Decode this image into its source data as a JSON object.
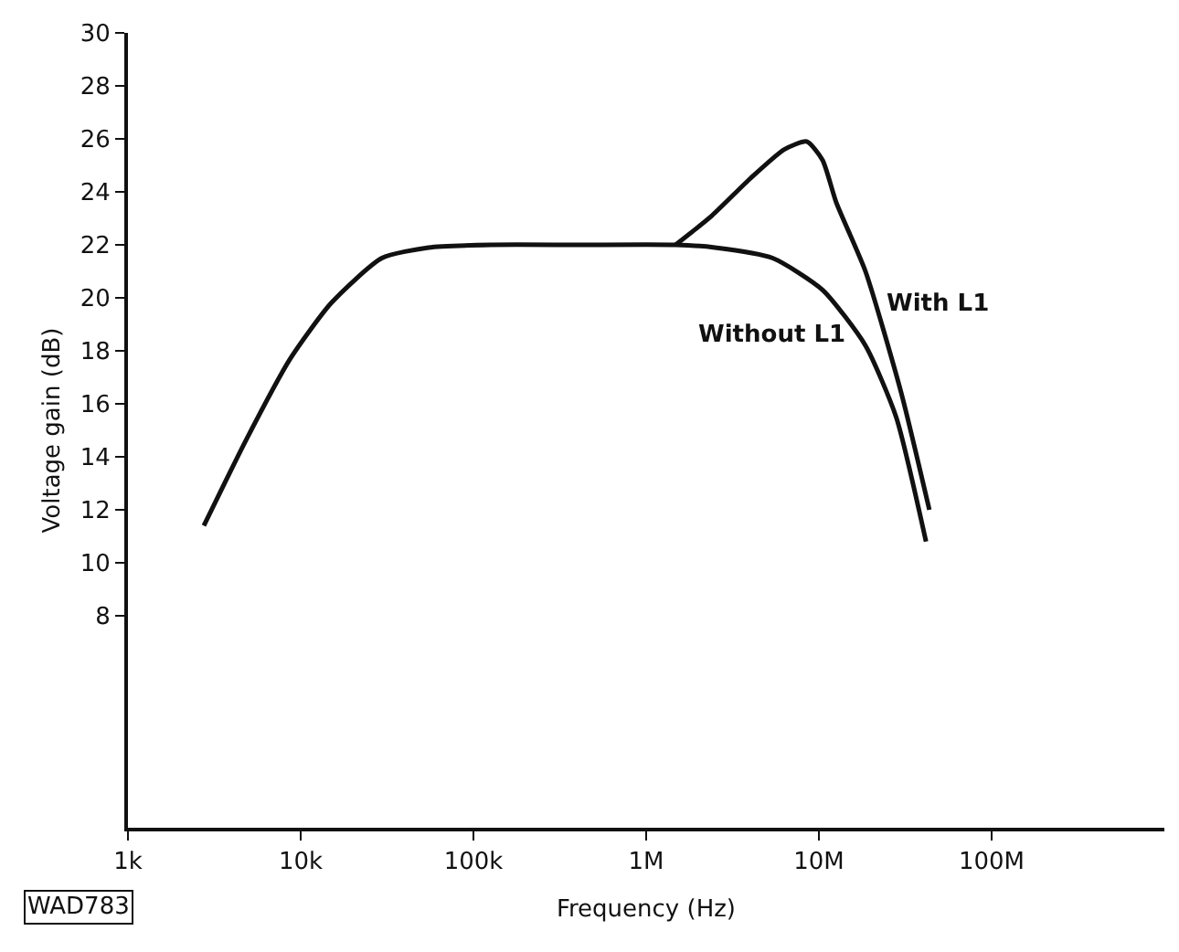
{
  "chart_data": {
    "type": "line",
    "xlabel": "Frequency (Hz)",
    "ylabel": "Voltage gain (dB)",
    "log": "x",
    "xlim": [
      1000,
      1000000000
    ],
    "ylim": [
      0,
      30
    ],
    "xticks": [
      {
        "value": 1000,
        "label": "1k"
      },
      {
        "value": 10000,
        "label": "10k"
      },
      {
        "value": 100000,
        "label": "100k"
      },
      {
        "value": 1000000,
        "label": "1M"
      },
      {
        "value": 10000000,
        "label": "10M"
      },
      {
        "value": 100000000,
        "label": "100M"
      }
    ],
    "yticks": [
      8,
      10,
      12,
      14,
      16,
      18,
      20,
      22,
      24,
      26,
      28,
      30
    ],
    "grid": false,
    "legend": false,
    "marker": "none",
    "line_style": "solid",
    "annotations": [
      "WAD783"
    ],
    "series": [
      {
        "name": "Without L1",
        "color": "#111111",
        "x": [
          2750,
          4800,
          8700,
          15000,
          29500,
          55000,
          126000,
          400000,
          1480000,
          2500000,
          5400000,
          10500000,
          18600000,
          28000000,
          41700000
        ],
        "values": [
          11.4,
          14.6,
          17.7,
          19.8,
          21.5,
          21.9,
          22.0,
          22.0,
          22.0,
          21.9,
          21.5,
          20.3,
          18.2,
          15.5,
          10.8
        ]
      },
      {
        "name": "With L1",
        "color": "#111111",
        "x": [
          1480000,
          2400000,
          4000000,
          6300000,
          8500000,
          10500000,
          12600000,
          18600000,
          30000000,
          43600000
        ],
        "values": [
          22.0,
          23.1,
          24.5,
          25.6,
          25.9,
          25.2,
          23.6,
          21.0,
          16.4,
          12.0
        ]
      }
    ]
  }
}
